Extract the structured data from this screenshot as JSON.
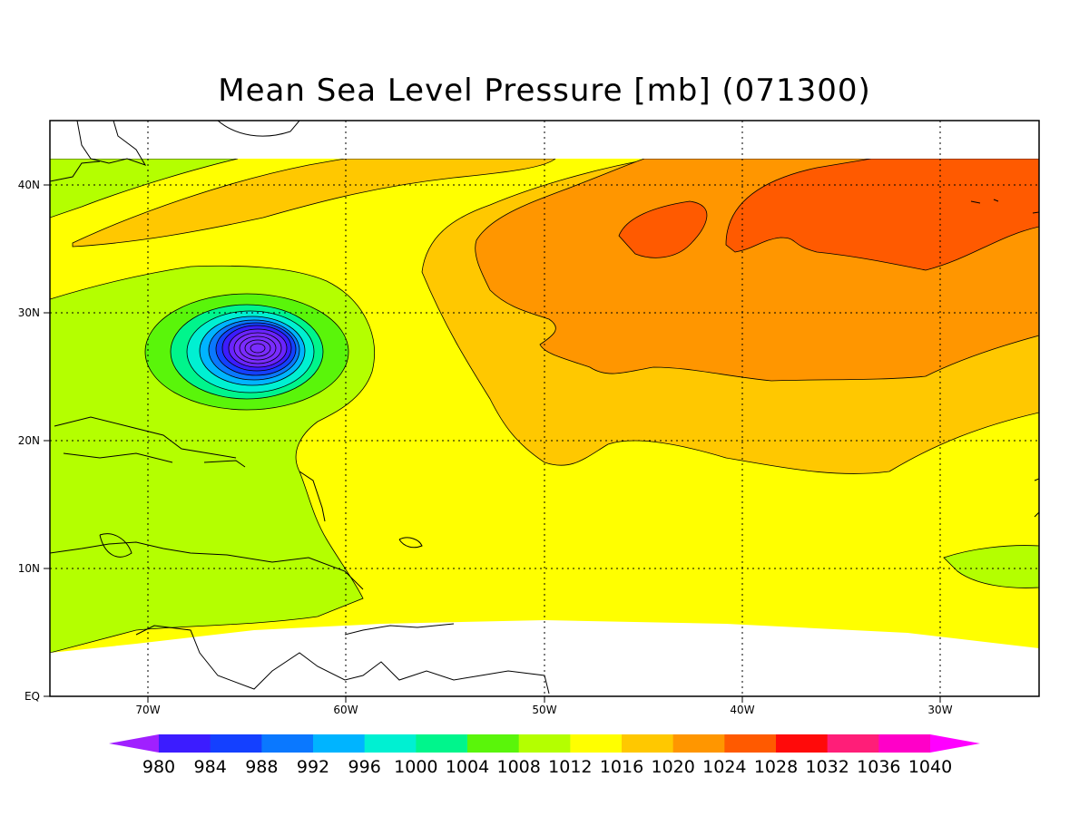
{
  "title": "Mean Sea Level Pressure [mb] (071300)",
  "map": {
    "lon_ticks": [
      "70W",
      "60W",
      "50W",
      "40W",
      "30W"
    ],
    "lat_ticks": [
      "EQ",
      "10N",
      "20N",
      "30N",
      "40N"
    ],
    "grid": "dotted"
  },
  "colorbar": {
    "labels": [
      "980",
      "984",
      "988",
      "992",
      "996",
      "1000",
      "1004",
      "1008",
      "1012",
      "1016",
      "1020",
      "1024",
      "1028",
      "1032",
      "1036",
      "1040"
    ],
    "colors": [
      "#a020ff",
      "#3c1cff",
      "#1440ff",
      "#0a78ff",
      "#00b4ff",
      "#00f0d2",
      "#00f58c",
      "#5af50a",
      "#b4ff00",
      "#ffff00",
      "#ffc800",
      "#ff9600",
      "#ff5a00",
      "#ff0a0a",
      "#ff1e78",
      "#ff00c8",
      "#ff00ff"
    ]
  },
  "palette": {
    "water_1012": "#b4ff00",
    "water_1016": "#ffff00",
    "water_1020": "#ffc800",
    "water_1024": "#ff9600",
    "water_1028": "#ff5a00",
    "low_center": "#7a2cff"
  }
}
